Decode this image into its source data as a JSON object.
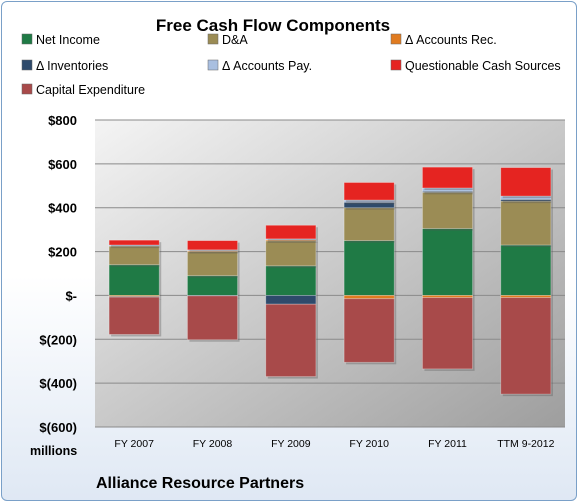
{
  "chart_data": {
    "type": "bar",
    "stacked": true,
    "title": "Free Cash Flow Components",
    "units_label": "millions",
    "company": "Alliance Resource Partners",
    "categories": [
      "FY 2007",
      "FY 2008",
      "FY 2009",
      "FY 2010",
      "FY 2011",
      "TTM 9-2012"
    ],
    "ylim": [
      -600,
      800
    ],
    "yticks": [
      800,
      600,
      400,
      200,
      0,
      -200,
      -400,
      -600
    ],
    "ytick_labels": [
      "$800",
      "$600",
      "$400",
      "$200",
      "$-",
      "$(200)",
      "$(400)",
      "$(600)"
    ],
    "grid": true,
    "legend_position": "top",
    "series": [
      {
        "name": "Net Income",
        "color": "#1f7a45",
        "values": [
          140,
          90,
          135,
          250,
          305,
          230
        ]
      },
      {
        "name": "D&A",
        "color": "#9b8c55",
        "values": [
          85,
          110,
          115,
          150,
          165,
          200
        ]
      },
      {
        "name": "Δ Accounts Rec.",
        "color": "#e07b20",
        "values": [
          -5,
          5,
          3,
          -15,
          -10,
          -10
        ]
      },
      {
        "name": "Δ Inventories",
        "color": "#2e4a6b",
        "values": [
          -3,
          -2,
          -40,
          25,
          5,
          8
        ]
      },
      {
        "name": "Δ Accounts Pay.",
        "color": "#a9bfe0",
        "values": [
          5,
          3,
          5,
          10,
          15,
          15
        ]
      },
      {
        "name": "Questionable Cash Sources",
        "color": "#e52421",
        "values": [
          22,
          42,
          62,
          80,
          95,
          130
        ]
      },
      {
        "name": "Capital Expenditure",
        "color": "#a84a4a",
        "values": [
          -170,
          -200,
          -330,
          -290,
          -325,
          -440
        ]
      }
    ]
  }
}
